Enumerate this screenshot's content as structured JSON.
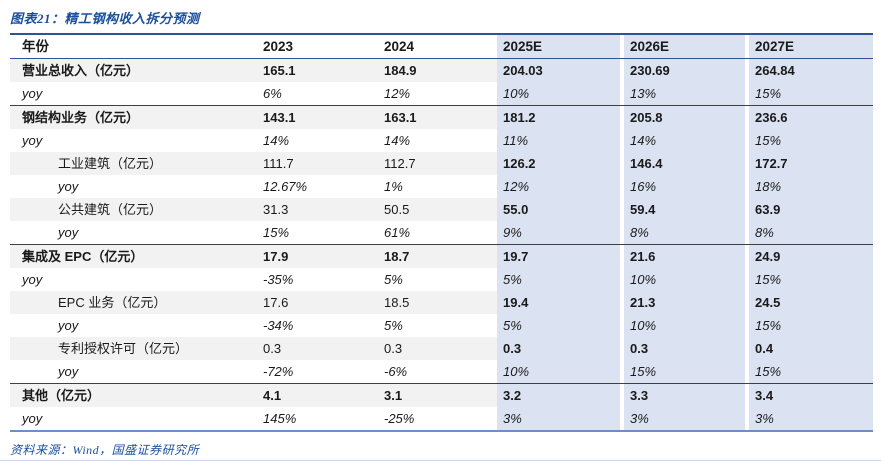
{
  "title": "图表21：精工钢构收入拆分预测",
  "source": "资料来源：Wind，国盛证券研究所",
  "colors": {
    "accent_blue": "#1a4f9c",
    "forecast_bg": "#dbe2f2",
    "stripe_bg": "#f2f2f2",
    "header_rule": "#2f5496",
    "section_rule": "#404040",
    "table_bottom_rule": "#6d8fc9"
  },
  "chart_data": {
    "type": "table",
    "columns": [
      "年份",
      "2023",
      "2024",
      "2025E",
      "2026E",
      "2027E"
    ],
    "forecast_columns": [
      "2025E",
      "2026E",
      "2027E"
    ],
    "rows": [
      {
        "label": "营业总收入（亿元）",
        "level": 0,
        "yoy": false,
        "stripe": true,
        "bold_hist": true,
        "bold_fc": true,
        "section_top": false,
        "values": [
          "165.1",
          "184.9",
          "204.03",
          "230.69",
          "264.84"
        ]
      },
      {
        "label": "yoy",
        "level": 0,
        "yoy": true,
        "stripe": false,
        "bold_hist": false,
        "bold_fc": false,
        "section_top": false,
        "values": [
          "6%",
          "12%",
          "10%",
          "13%",
          "15%"
        ]
      },
      {
        "label": "钢结构业务（亿元）",
        "level": 0,
        "yoy": false,
        "stripe": true,
        "bold_hist": true,
        "bold_fc": true,
        "section_top": true,
        "values": [
          "143.1",
          "163.1",
          "181.2",
          "205.8",
          "236.6"
        ]
      },
      {
        "label": "yoy",
        "level": 0,
        "yoy": true,
        "stripe": false,
        "bold_hist": false,
        "bold_fc": false,
        "section_top": false,
        "values": [
          "14%",
          "14%",
          "11%",
          "14%",
          "15%"
        ]
      },
      {
        "label": "工业建筑（亿元）",
        "level": 1,
        "yoy": false,
        "stripe": true,
        "bold_hist": false,
        "bold_fc": true,
        "section_top": false,
        "values": [
          "111.7",
          "112.7",
          "126.2",
          "146.4",
          "172.7"
        ]
      },
      {
        "label": "yoy",
        "level": 1,
        "yoy": true,
        "stripe": false,
        "bold_hist": false,
        "bold_fc": false,
        "section_top": false,
        "values": [
          "12.67%",
          "1%",
          "12%",
          "16%",
          "18%"
        ]
      },
      {
        "label": "公共建筑（亿元）",
        "level": 1,
        "yoy": false,
        "stripe": true,
        "bold_hist": false,
        "bold_fc": true,
        "section_top": false,
        "values": [
          "31.3",
          "50.5",
          "55.0",
          "59.4",
          "63.9"
        ]
      },
      {
        "label": "yoy",
        "level": 1,
        "yoy": true,
        "stripe": false,
        "bold_hist": false,
        "bold_fc": false,
        "section_top": false,
        "values": [
          "15%",
          "61%",
          "9%",
          "8%",
          "8%"
        ]
      },
      {
        "label": "集成及 EPC（亿元）",
        "level": 0,
        "yoy": false,
        "stripe": true,
        "bold_hist": true,
        "bold_fc": true,
        "section_top": true,
        "values": [
          "17.9",
          "18.7",
          "19.7",
          "21.6",
          "24.9"
        ]
      },
      {
        "label": "yoy",
        "level": 0,
        "yoy": true,
        "stripe": false,
        "bold_hist": false,
        "bold_fc": false,
        "section_top": false,
        "values": [
          "-35%",
          "5%",
          "5%",
          "10%",
          "15%"
        ]
      },
      {
        "label": "EPC 业务（亿元）",
        "level": 1,
        "yoy": false,
        "stripe": true,
        "bold_hist": false,
        "bold_fc": true,
        "section_top": false,
        "values": [
          "17.6",
          "18.5",
          "19.4",
          "21.3",
          "24.5"
        ]
      },
      {
        "label": "yoy",
        "level": 1,
        "yoy": true,
        "stripe": false,
        "bold_hist": false,
        "bold_fc": false,
        "section_top": false,
        "values": [
          "-34%",
          "5%",
          "5%",
          "10%",
          "15%"
        ]
      },
      {
        "label": "专利授权许可（亿元）",
        "level": 1,
        "yoy": false,
        "stripe": true,
        "bold_hist": false,
        "bold_fc": true,
        "section_top": false,
        "values": [
          "0.3",
          "0.3",
          "0.3",
          "0.3",
          "0.4"
        ]
      },
      {
        "label": "yoy",
        "level": 1,
        "yoy": true,
        "stripe": false,
        "bold_hist": false,
        "bold_fc": false,
        "section_top": false,
        "values": [
          "-72%",
          "-6%",
          "10%",
          "15%",
          "15%"
        ]
      },
      {
        "label": "其他（亿元）",
        "level": 0,
        "yoy": false,
        "stripe": true,
        "bold_hist": true,
        "bold_fc": true,
        "section_top": true,
        "values": [
          "4.1",
          "3.1",
          "3.2",
          "3.3",
          "3.4"
        ]
      },
      {
        "label": "yoy",
        "level": 0,
        "yoy": true,
        "stripe": false,
        "bold_hist": false,
        "bold_fc": false,
        "section_top": false,
        "values": [
          "145%",
          "-25%",
          "3%",
          "3%",
          "3%"
        ]
      }
    ]
  }
}
